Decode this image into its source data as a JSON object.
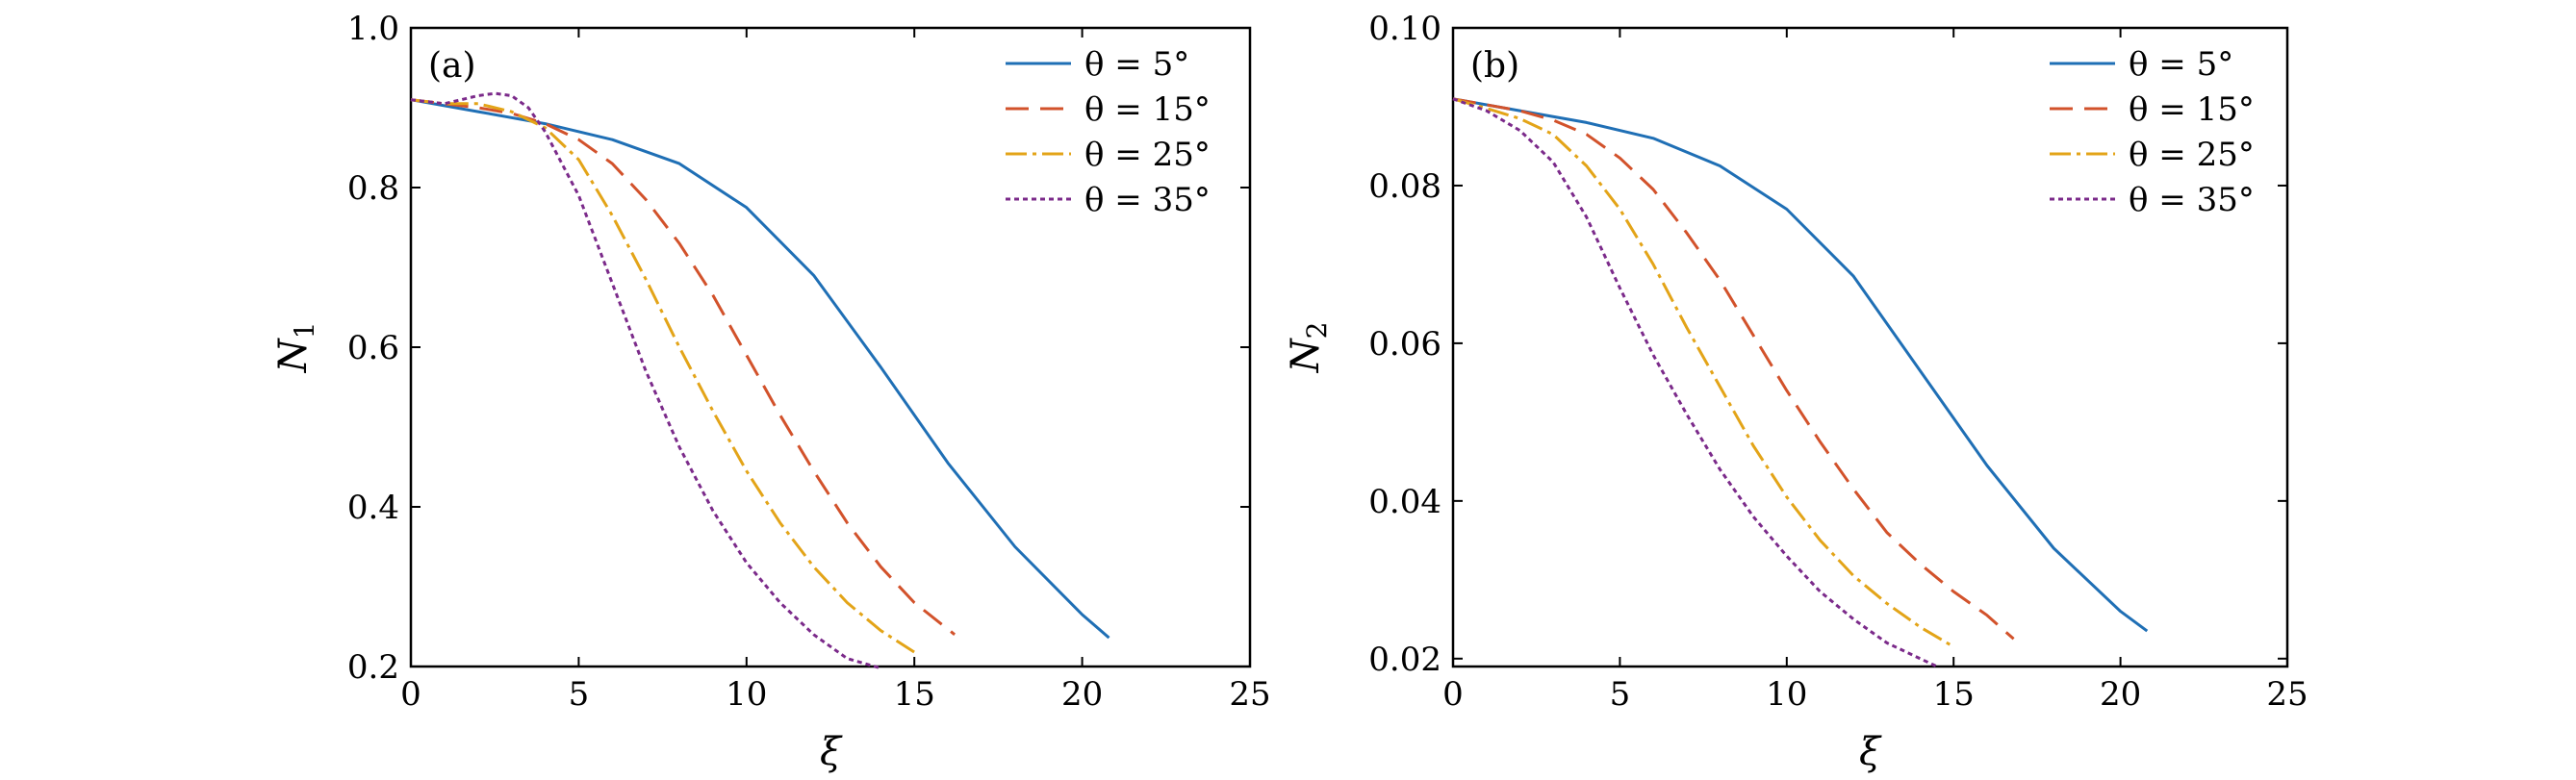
{
  "chart_data": [
    {
      "type": "line",
      "panel_label": "(a)",
      "xlabel": "ξ",
      "ylabel": "N",
      "ylabel_sub": "1",
      "xlim": [
        0,
        25
      ],
      "ylim": [
        0.2,
        1.0
      ],
      "xticks": [
        0,
        5,
        10,
        15,
        20,
        25
      ],
      "yticks": [
        0.2,
        0.4,
        0.6,
        0.8,
        1.0
      ],
      "xtick_labels": [
        "0",
        "5",
        "10",
        "15",
        "20",
        "25"
      ],
      "ytick_labels": [
        "0.2",
        "0.4",
        "0.6",
        "0.8",
        "1.0"
      ],
      "grid": false,
      "legend_position": "top-right",
      "series": [
        {
          "name": "θ = 5°",
          "color": "#1f6fb5",
          "dash": "solid",
          "x": [
            0,
            2,
            4,
            6,
            8,
            10,
            12,
            14,
            16,
            18,
            20,
            20.8
          ],
          "y": [
            0.91,
            0.895,
            0.88,
            0.86,
            0.83,
            0.775,
            0.69,
            0.575,
            0.455,
            0.35,
            0.265,
            0.236
          ]
        },
        {
          "name": "θ = 15°",
          "color": "#d2522b",
          "dash": "dashed",
          "x": [
            0,
            2,
            3,
            4,
            5,
            6,
            7,
            8,
            9,
            10,
            11,
            12,
            13,
            14,
            15,
            16.2
          ],
          "y": [
            0.91,
            0.9,
            0.893,
            0.88,
            0.86,
            0.83,
            0.785,
            0.73,
            0.665,
            0.59,
            0.515,
            0.445,
            0.38,
            0.325,
            0.28,
            0.24
          ]
        },
        {
          "name": "θ = 25°",
          "color": "#e3a418",
          "dash": "dashdot",
          "x": [
            0,
            1,
            2,
            3,
            4,
            5,
            6,
            7,
            8,
            9,
            10,
            11,
            12,
            13,
            14,
            15
          ],
          "y": [
            0.91,
            0.905,
            0.905,
            0.895,
            0.875,
            0.835,
            0.765,
            0.685,
            0.6,
            0.52,
            0.445,
            0.38,
            0.325,
            0.28,
            0.245,
            0.218
          ]
        },
        {
          "name": "θ = 35°",
          "color": "#7b2a8a",
          "dash": "dotted",
          "x": [
            0,
            1,
            2,
            2.5,
            3,
            3.5,
            4,
            5,
            6,
            7,
            8,
            9,
            10,
            11,
            12,
            13,
            14
          ],
          "y": [
            0.91,
            0.905,
            0.915,
            0.918,
            0.915,
            0.9,
            0.87,
            0.79,
            0.68,
            0.57,
            0.475,
            0.395,
            0.33,
            0.28,
            0.24,
            0.21,
            0.198
          ]
        }
      ]
    },
    {
      "type": "line",
      "panel_label": "(b)",
      "xlabel": "ξ",
      "ylabel": "N",
      "ylabel_sub": "2",
      "xlim": [
        0,
        25
      ],
      "ylim": [
        0.019,
        0.1
      ],
      "xticks": [
        0,
        5,
        10,
        15,
        20,
        25
      ],
      "yticks": [
        0.02,
        0.04,
        0.06,
        0.08,
        0.1
      ],
      "xtick_labels": [
        "0",
        "5",
        "10",
        "15",
        "20",
        "25"
      ],
      "ytick_labels": [
        "0.02",
        "0.04",
        "0.06",
        "0.08",
        "0.10"
      ],
      "grid": false,
      "legend_position": "top-right",
      "series": [
        {
          "name": "θ = 5°",
          "color": "#1f6fb5",
          "dash": "solid",
          "x": [
            0,
            2,
            4,
            6,
            8,
            10,
            12,
            14,
            16,
            18,
            20,
            20.8
          ],
          "y": [
            0.091,
            0.0895,
            0.088,
            0.086,
            0.0825,
            0.077,
            0.0685,
            0.0565,
            0.0445,
            0.034,
            0.026,
            0.0235
          ]
        },
        {
          "name": "θ = 15°",
          "color": "#d2522b",
          "dash": "dashed",
          "x": [
            0,
            2,
            3,
            4,
            5,
            6,
            7,
            8,
            9,
            10,
            11,
            12,
            13,
            14,
            15,
            16,
            16.8
          ],
          "y": [
            0.091,
            0.0895,
            0.0883,
            0.0865,
            0.0835,
            0.0795,
            0.074,
            0.068,
            0.061,
            0.054,
            0.0475,
            0.0415,
            0.036,
            0.032,
            0.0285,
            0.0255,
            0.0225
          ]
        },
        {
          "name": "θ = 25°",
          "color": "#e3a418",
          "dash": "dashdot",
          "x": [
            0,
            1,
            2,
            3,
            4,
            5,
            6,
            7,
            8,
            9,
            10,
            11,
            12,
            13,
            14,
            15
          ],
          "y": [
            0.091,
            0.0898,
            0.0885,
            0.0865,
            0.0825,
            0.077,
            0.07,
            0.062,
            0.0545,
            0.047,
            0.0405,
            0.035,
            0.0305,
            0.027,
            0.024,
            0.0215
          ]
        },
        {
          "name": "θ = 35°",
          "color": "#7b2a8a",
          "dash": "dotted",
          "x": [
            0,
            1,
            2,
            3,
            4,
            5,
            6,
            7,
            8,
            9,
            10,
            11,
            12,
            13,
            14,
            14.5
          ],
          "y": [
            0.091,
            0.0895,
            0.087,
            0.083,
            0.076,
            0.067,
            0.0585,
            0.051,
            0.044,
            0.038,
            0.033,
            0.0285,
            0.025,
            0.022,
            0.02,
            0.019
          ]
        }
      ]
    }
  ]
}
